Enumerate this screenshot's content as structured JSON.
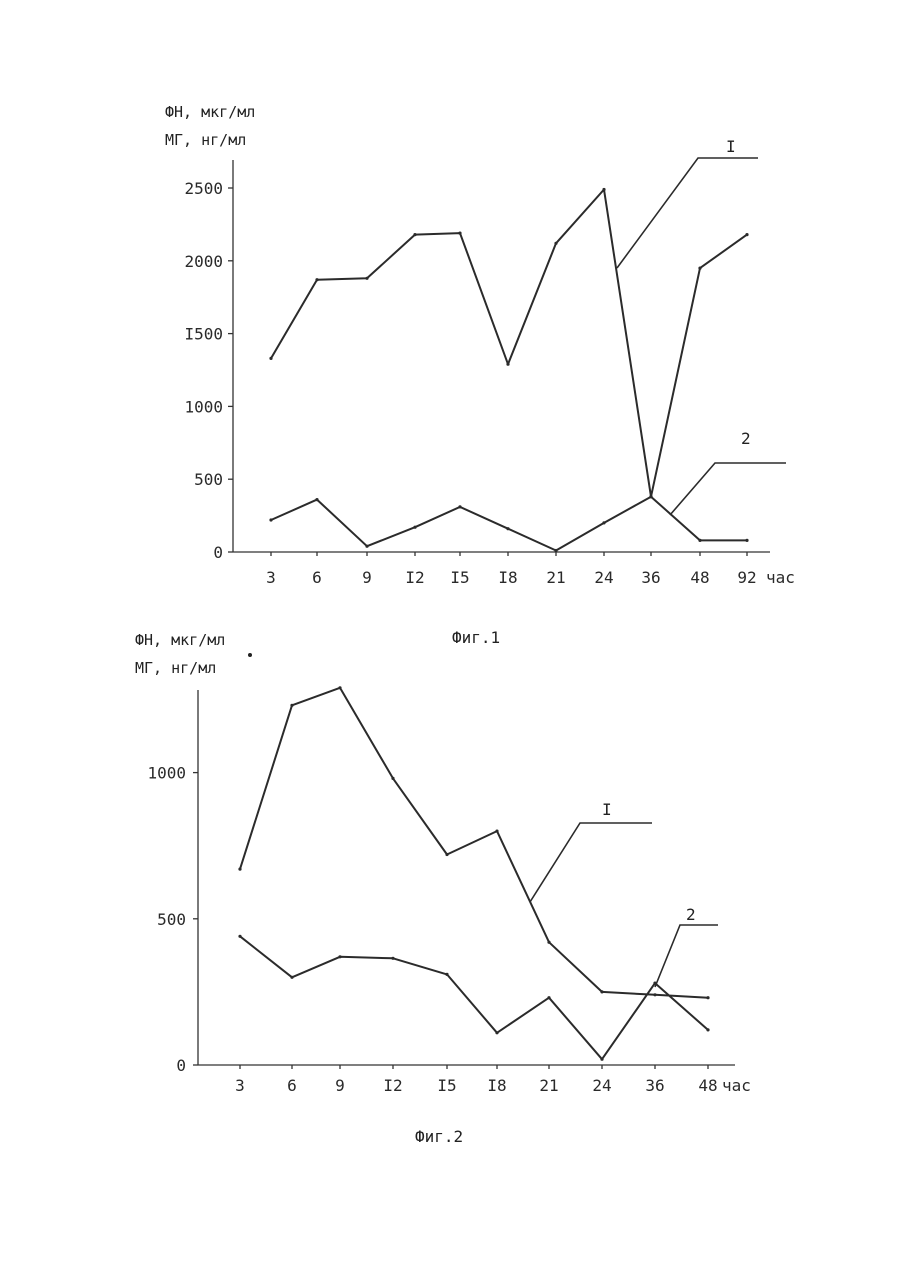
{
  "figures": [
    {
      "caption": "Фиг.1",
      "ylabel_line1": "ФН, мкг/мл",
      "ylabel_line2": "МГ, нг/мл",
      "unit": "час"
    },
    {
      "caption": "Фиг.2",
      "ylabel_line1": "ФН, мкг/мл",
      "ylabel_line2": "МГ, нг/мл",
      "unit": "час"
    }
  ],
  "chart_data": [
    {
      "type": "line",
      "title": "Фиг.1",
      "ylabel": "ФН, мкг/мл / МГ, нг/мл",
      "xlabel": "час",
      "categories": [
        "3",
        "6",
        "9",
        "I2",
        "I5",
        "I8",
        "21",
        "24",
        "36",
        "48",
        "92"
      ],
      "ytick_labels": [
        "0",
        "500",
        "1000",
        "I500",
        "2000",
        "2500"
      ],
      "yticks": [
        0,
        500,
        1000,
        1500,
        2000,
        2500
      ],
      "ylim": [
        0,
        2700
      ],
      "grid": false,
      "series": [
        {
          "name": "I",
          "values": [
            1330,
            1870,
            1880,
            2180,
            2190,
            1290,
            2120,
            2490,
            380,
            1950,
            2180
          ]
        },
        {
          "name": "2",
          "values": [
            220,
            360,
            40,
            170,
            310,
            160,
            10,
            200,
            380,
            80,
            80
          ]
        }
      ]
    },
    {
      "type": "line",
      "title": "Фиг.2",
      "ylabel": "ФН, мкг/мл / МГ, нг/мл",
      "xlabel": "час",
      "categories": [
        "3",
        "6",
        "9",
        "I2",
        "I5",
        "I8",
        "21",
        "24",
        "36",
        "48"
      ],
      "ytick_labels": [
        "0",
        "500",
        "1000"
      ],
      "yticks": [
        0,
        500,
        1000
      ],
      "ylim": [
        0,
        1300
      ],
      "grid": false,
      "series": [
        {
          "name": "I",
          "values": [
            670,
            1230,
            1290,
            980,
            720,
            800,
            420,
            250,
            240,
            230
          ]
        },
        {
          "name": "2",
          "values": [
            440,
            300,
            370,
            365,
            310,
            110,
            230,
            20,
            280,
            120
          ]
        }
      ]
    }
  ]
}
